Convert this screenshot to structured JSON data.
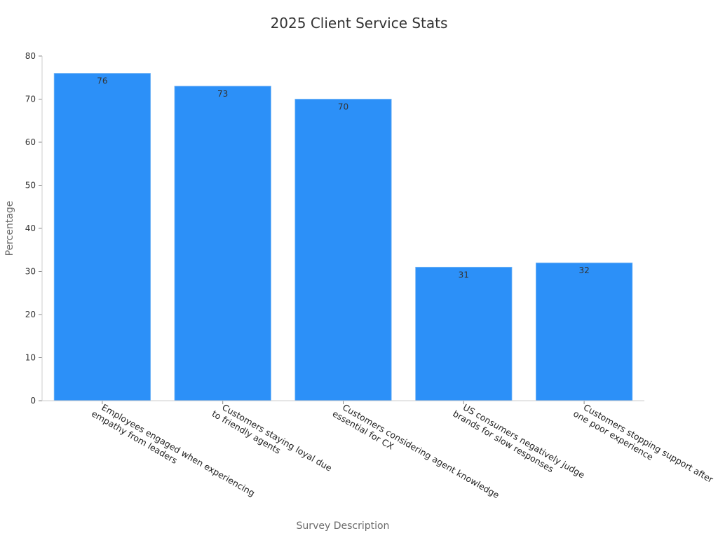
{
  "chart_data": {
    "type": "bar",
    "title": "2025 Client Service Stats",
    "xlabel": "Survey Description",
    "ylabel": "Percentage",
    "ylim": [
      0,
      80
    ],
    "yticks": [
      0,
      10,
      20,
      30,
      40,
      50,
      60,
      70,
      80
    ],
    "categories": [
      [
        "Employees engaged when experiencing",
        "empathy from leaders"
      ],
      [
        "Customers staying  loyal due",
        "to friendly agents"
      ],
      [
        "Customers considering agent knowledge",
        "essential for CX"
      ],
      [
        "US consumers negatively judge",
        "brands for slow responses"
      ],
      [
        "Customers stopping support after",
        "one poor experience"
      ]
    ],
    "values": [
      76,
      73,
      70,
      31,
      32
    ],
    "bar_color": "#2c90f8",
    "grid": false,
    "legend": "none"
  }
}
